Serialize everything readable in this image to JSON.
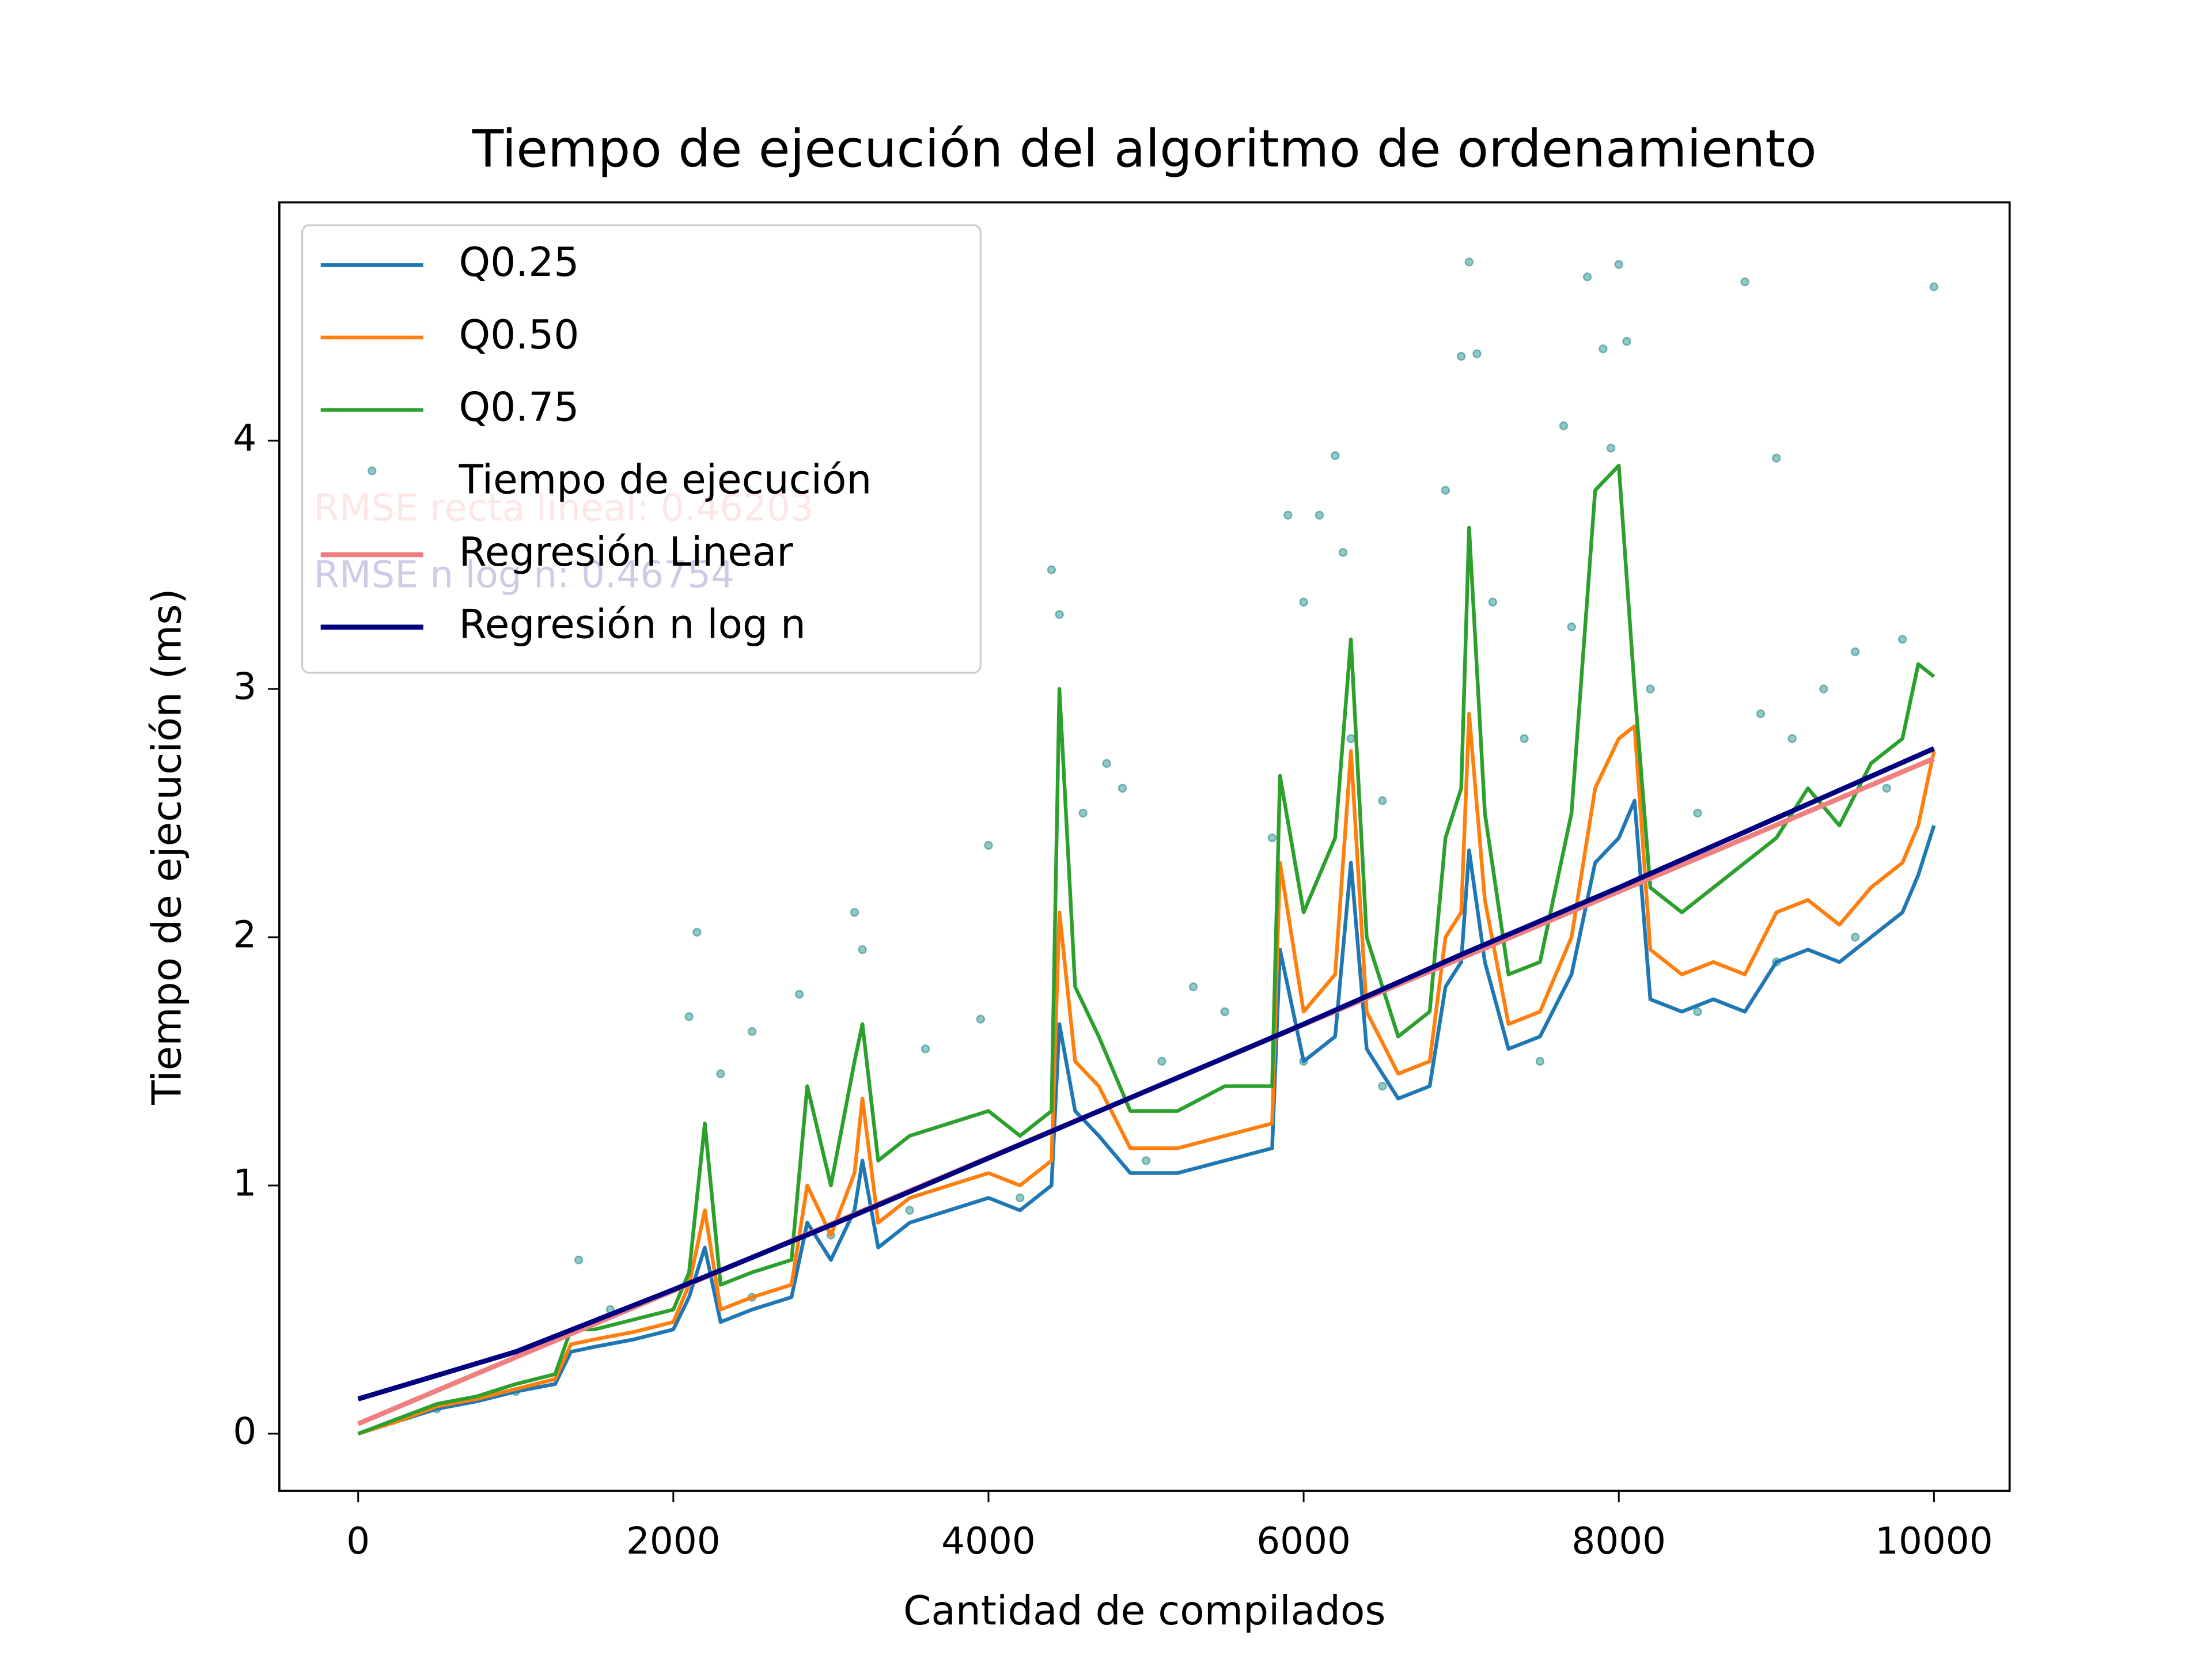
{
  "chart_data": {
    "type": "line",
    "title": "Tiempo de ejecución del algoritmo de ordenamiento",
    "x_label": "Cantidad de compilados",
    "y_label": "Tiempo de ejecución (ms)",
    "xlim": [
      -500,
      10480
    ],
    "ylim": [
      -0.23,
      4.96
    ],
    "xticks": [
      0,
      2000,
      4000,
      6000,
      8000,
      10000
    ],
    "yticks": [
      0,
      1,
      2,
      3,
      4
    ],
    "legend": "upper left",
    "annotations": [
      {
        "text": "RMSE recta lineal: 0.46203",
        "color": "#f08080"
      },
      {
        "text": "RMSE n log n: 0.46754",
        "color": "#000080"
      }
    ],
    "series": [
      {
        "name": "Q0.25",
        "kind": "line",
        "color": "#1f77b4",
        "x": [
          0,
          250,
          500,
          750,
          1000,
          1250,
          1350,
          1500,
          1750,
          2000,
          2100,
          2200,
          2300,
          2500,
          2750,
          2850,
          3000,
          3150,
          3200,
          3300,
          3500,
          3750,
          4000,
          4200,
          4400,
          4450,
          4550,
          4700,
          4900,
          5200,
          5500,
          5800,
          5850,
          6000,
          6200,
          6300,
          6400,
          6600,
          6800,
          6900,
          7000,
          7050,
          7150,
          7300,
          7500,
          7700,
          7850,
          8000,
          8100,
          8200,
          8400,
          8600,
          8800,
          9000,
          9200,
          9400,
          9600,
          9800,
          9900,
          10000
        ],
        "values": [
          0,
          0.05,
          0.1,
          0.13,
          0.17,
          0.2,
          0.33,
          0.35,
          0.38,
          0.42,
          0.55,
          0.75,
          0.45,
          0.5,
          0.55,
          0.85,
          0.7,
          0.9,
          1.1,
          0.75,
          0.85,
          0.9,
          0.95,
          0.9,
          1.0,
          1.65,
          1.3,
          1.2,
          1.05,
          1.05,
          1.1,
          1.15,
          1.95,
          1.5,
          1.6,
          2.3,
          1.55,
          1.35,
          1.4,
          1.8,
          1.9,
          2.35,
          1.9,
          1.55,
          1.6,
          1.85,
          2.3,
          2.4,
          2.55,
          1.75,
          1.7,
          1.75,
          1.7,
          1.9,
          1.95,
          1.9,
          2.0,
          2.1,
          2.25,
          2.45
        ]
      },
      {
        "name": "Q0.50",
        "kind": "line",
        "color": "#ff7f0e",
        "x": [
          0,
          250,
          500,
          750,
          1000,
          1250,
          1350,
          1500,
          1750,
          2000,
          2100,
          2200,
          2300,
          2500,
          2750,
          2850,
          3000,
          3150,
          3200,
          3300,
          3500,
          3750,
          4000,
          4200,
          4400,
          4450,
          4550,
          4700,
          4900,
          5200,
          5500,
          5800,
          5850,
          6000,
          6200,
          6300,
          6400,
          6600,
          6800,
          6900,
          7000,
          7050,
          7150,
          7300,
          7500,
          7700,
          7850,
          8000,
          8100,
          8200,
          8400,
          8600,
          8800,
          9000,
          9200,
          9400,
          9600,
          9800,
          9900,
          10000
        ],
        "values": [
          0,
          0.05,
          0.11,
          0.14,
          0.18,
          0.22,
          0.36,
          0.38,
          0.41,
          0.45,
          0.6,
          0.9,
          0.5,
          0.55,
          0.6,
          1.0,
          0.8,
          1.05,
          1.35,
          0.85,
          0.95,
          1.0,
          1.05,
          1.0,
          1.1,
          2.1,
          1.5,
          1.4,
          1.15,
          1.15,
          1.2,
          1.25,
          2.3,
          1.7,
          1.85,
          2.75,
          1.7,
          1.45,
          1.5,
          2.0,
          2.1,
          2.9,
          2.15,
          1.65,
          1.7,
          2.0,
          2.6,
          2.8,
          2.85,
          1.95,
          1.85,
          1.9,
          1.85,
          2.1,
          2.15,
          2.05,
          2.2,
          2.3,
          2.45,
          2.75
        ]
      },
      {
        "name": "Q0.75",
        "kind": "line",
        "color": "#2ca02c",
        "x": [
          0,
          250,
          500,
          750,
          1000,
          1250,
          1350,
          1500,
          1750,
          2000,
          2100,
          2200,
          2300,
          2500,
          2750,
          2850,
          3000,
          3150,
          3200,
          3300,
          3500,
          3750,
          4000,
          4200,
          4400,
          4450,
          4550,
          4700,
          4900,
          5200,
          5500,
          5800,
          5850,
          6000,
          6200,
          6300,
          6400,
          6600,
          6800,
          6900,
          7000,
          7050,
          7150,
          7300,
          7500,
          7700,
          7850,
          8000,
          8100,
          8200,
          8400,
          8600,
          8800,
          9000,
          9200,
          9400,
          9600,
          9800,
          9900,
          10000
        ],
        "values": [
          0,
          0.06,
          0.12,
          0.15,
          0.2,
          0.24,
          0.42,
          0.42,
          0.46,
          0.5,
          0.65,
          1.25,
          0.6,
          0.65,
          0.7,
          1.4,
          1.0,
          1.5,
          1.65,
          1.1,
          1.2,
          1.25,
          1.3,
          1.2,
          1.3,
          3.0,
          1.8,
          1.6,
          1.3,
          1.3,
          1.4,
          1.4,
          2.65,
          2.1,
          2.4,
          3.2,
          2.0,
          1.6,
          1.7,
          2.4,
          2.6,
          3.65,
          2.5,
          1.85,
          1.9,
          2.5,
          3.8,
          3.9,
          3.0,
          2.2,
          2.1,
          2.2,
          2.3,
          2.4,
          2.6,
          2.45,
          2.7,
          2.8,
          3.1,
          3.05
        ]
      },
      {
        "name": "Tiempo de ejecución",
        "kind": "scatter",
        "color": "#2a8f8f",
        "x": [
          1400,
          2150,
          2100,
          2300,
          2500,
          2800,
          3150,
          3200,
          3600,
          3950,
          4000,
          4400,
          4450,
          4600,
          4750,
          4850,
          5100,
          5300,
          5500,
          5800,
          5900,
          6000,
          6100,
          6200,
          6250,
          6300,
          6500,
          6900,
          7000,
          7050,
          7100,
          7200,
          7400,
          7650,
          7700,
          7800,
          7900,
          7950,
          8000,
          8050,
          8200,
          8500,
          8800,
          8900,
          9000,
          9100,
          9300,
          9500,
          9700,
          9800,
          10000,
          1600,
          3000,
          5000,
          6500,
          7500,
          9000,
          9500,
          500,
          1000,
          2500,
          3500,
          4200,
          6000,
          8500
        ],
        "values": [
          0.7,
          2.02,
          1.68,
          1.45,
          1.62,
          1.77,
          2.1,
          1.95,
          1.55,
          1.67,
          2.37,
          3.48,
          3.3,
          2.5,
          2.7,
          2.6,
          1.5,
          1.8,
          1.7,
          2.4,
          3.7,
          3.35,
          3.7,
          3.94,
          3.55,
          2.8,
          2.55,
          3.8,
          4.34,
          4.72,
          4.35,
          3.35,
          2.8,
          4.06,
          3.25,
          4.66,
          4.37,
          3.97,
          4.71,
          4.4,
          3.0,
          2.5,
          4.64,
          2.9,
          3.93,
          2.8,
          3.0,
          3.15,
          2.6,
          3.2,
          4.62,
          0.5,
          0.8,
          1.1,
          1.4,
          1.5,
          1.9,
          2.0,
          0.1,
          0.17,
          0.55,
          0.9,
          0.95,
          1.5,
          1.7
        ]
      },
      {
        "name": "Regresión Linear",
        "kind": "line",
        "color": "#f08080",
        "x": [
          0,
          10000
        ],
        "values": [
          0.04,
          2.72
        ]
      },
      {
        "name": "Regresión n log n",
        "kind": "line",
        "color": "#000080",
        "x": [
          0,
          1000,
          2000,
          3000,
          4000,
          5000,
          6000,
          7000,
          8000,
          9000,
          10000
        ],
        "values": [
          0.14,
          0.33,
          0.58,
          0.84,
          1.11,
          1.38,
          1.65,
          1.93,
          2.2,
          2.48,
          2.76
        ]
      }
    ]
  }
}
